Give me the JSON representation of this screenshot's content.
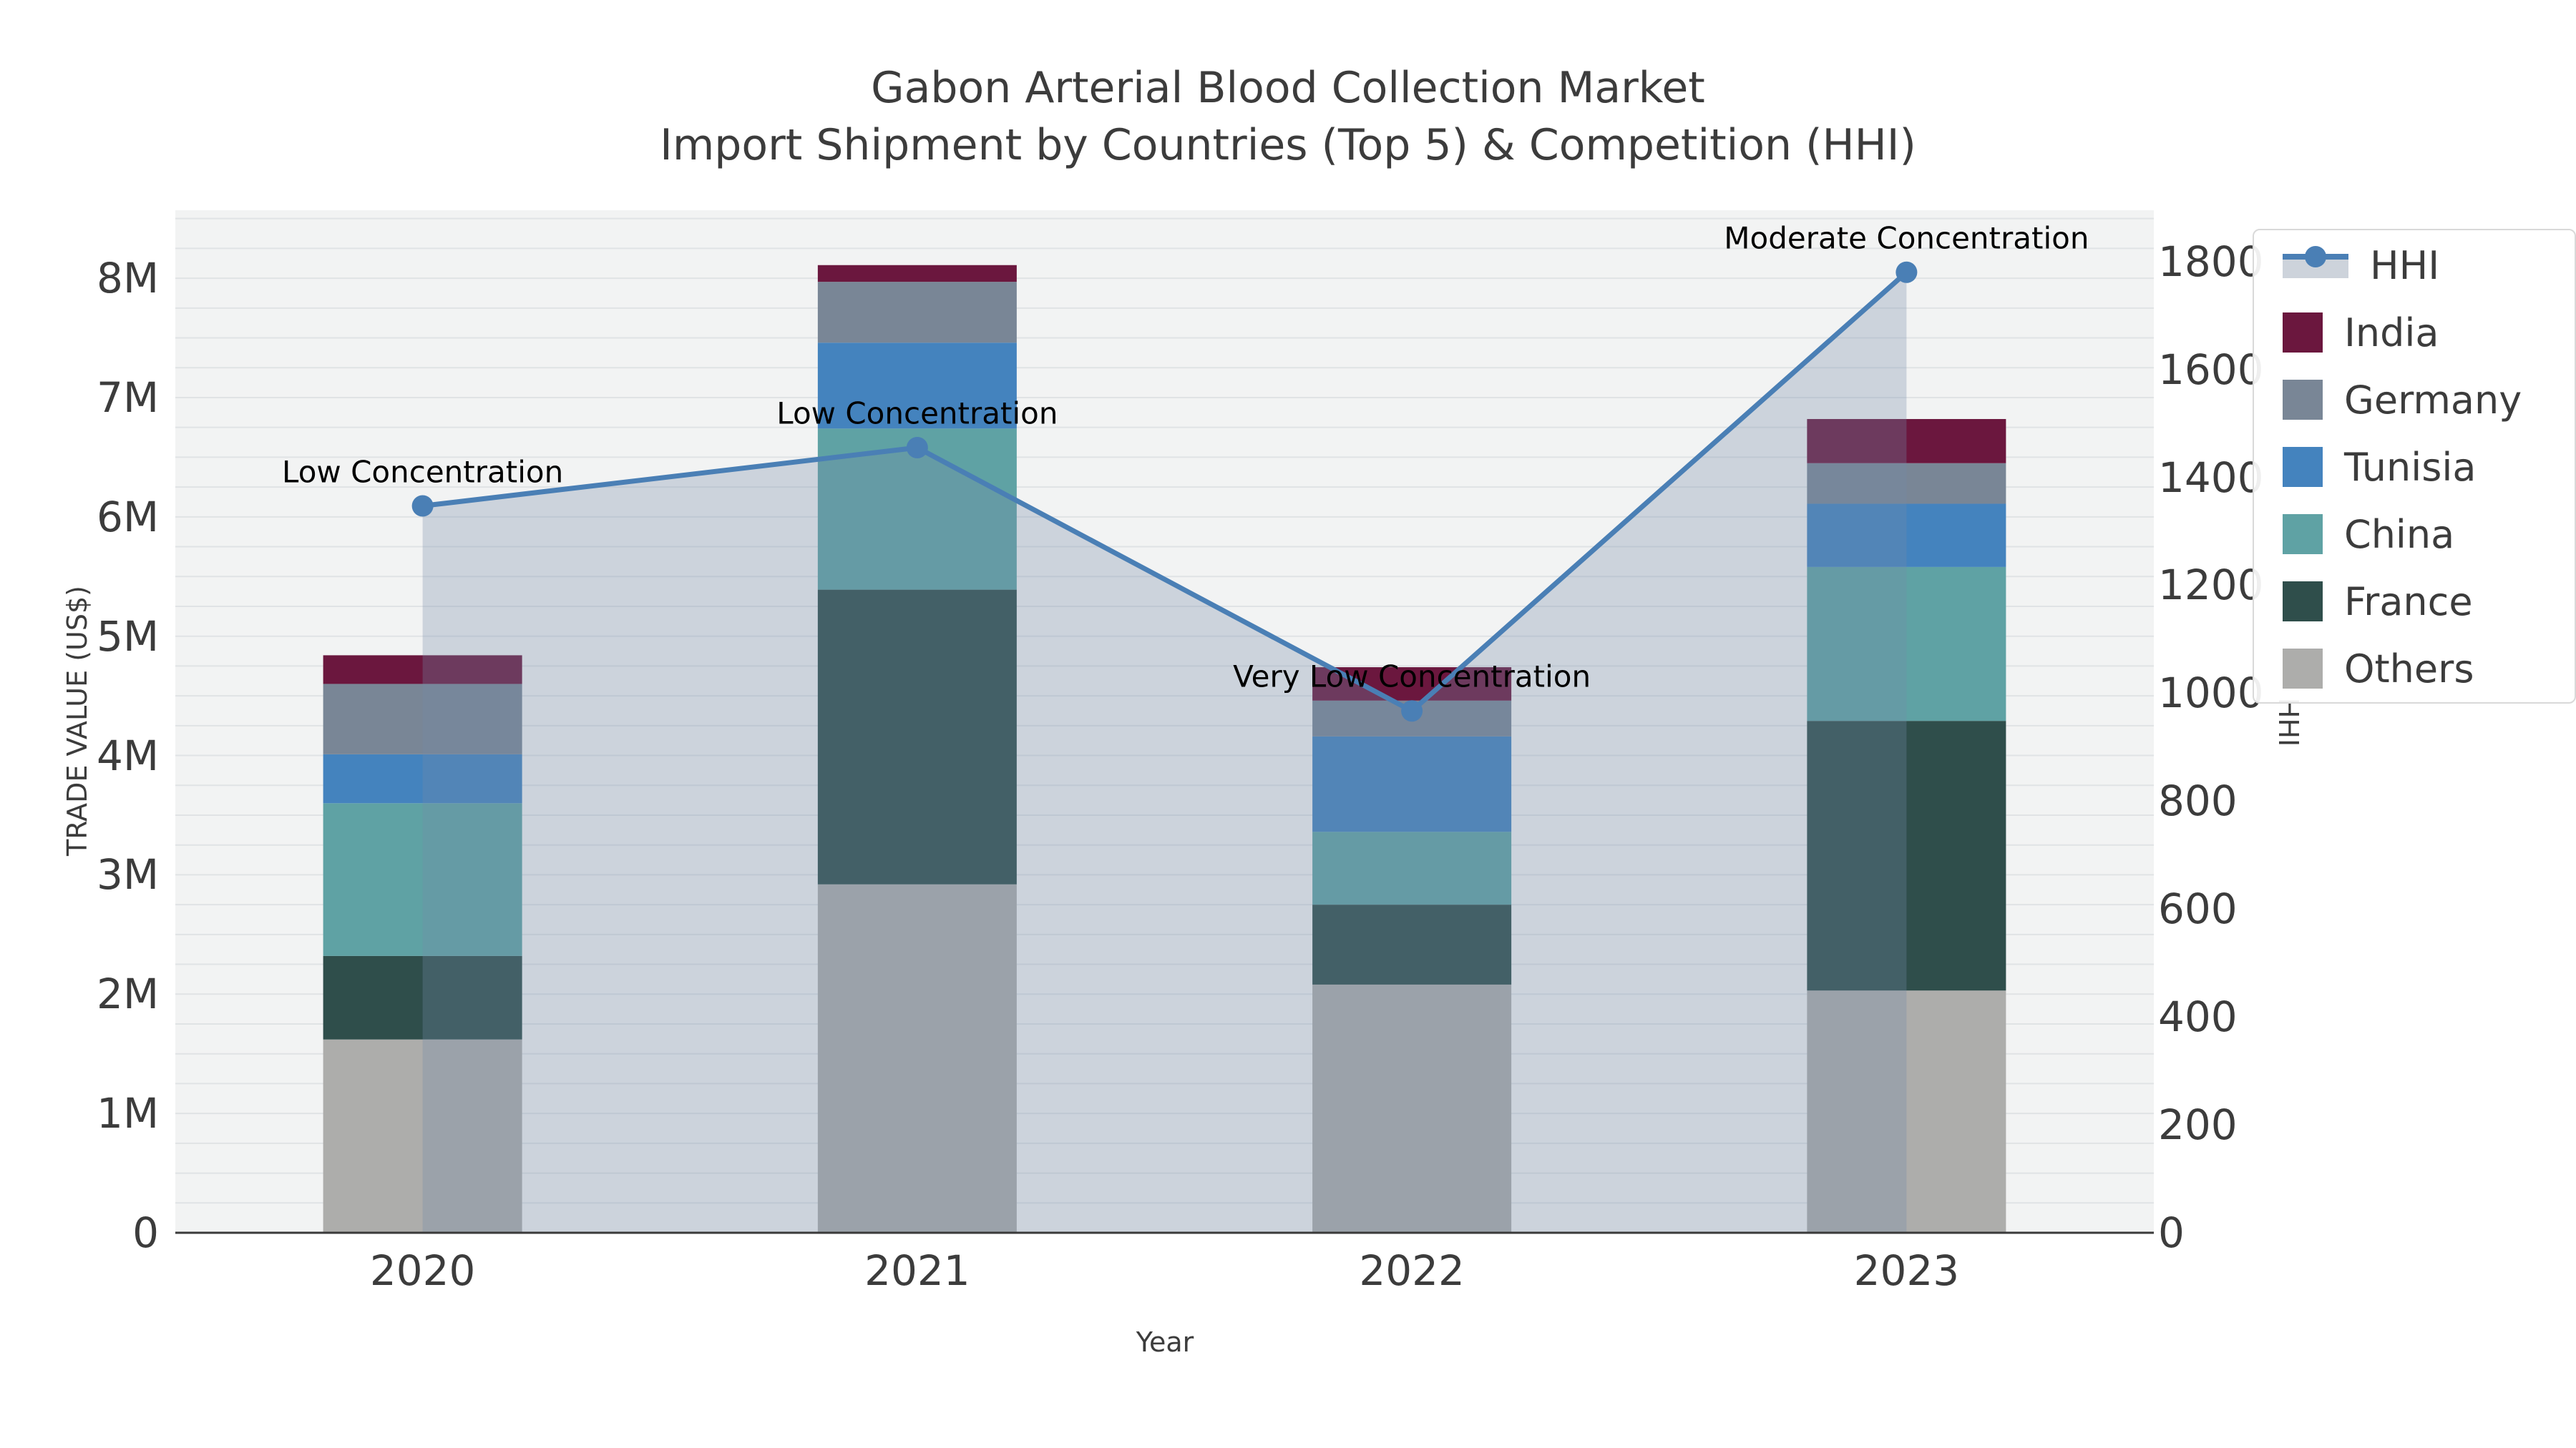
{
  "title": {
    "line1": "Gabon Arterial Blood Collection Market",
    "line2": "Import Shipment by Countries (Top 5) & Competition (HHI)"
  },
  "axes": {
    "left": {
      "title": "TRADE VALUE (US$)",
      "ticks": [
        "0",
        "1M",
        "2M",
        "3M",
        "4M",
        "5M",
        "6M",
        "7M",
        "8M"
      ]
    },
    "right": {
      "title": "HHI",
      "ticks": [
        "0",
        "200",
        "400",
        "600",
        "800",
        "1000",
        "1200",
        "1400",
        "1600",
        "1800"
      ]
    },
    "x": {
      "title": "Year",
      "ticks": [
        "2020",
        "2021",
        "2022",
        "2023"
      ]
    }
  },
  "legend": {
    "items": [
      {
        "label": "HHI",
        "type": "line-area",
        "color": "#4a7fb5"
      },
      {
        "label": "India",
        "type": "bar",
        "color": "#6b173e"
      },
      {
        "label": "Germany",
        "type": "bar",
        "color": "#798696"
      },
      {
        "label": "Tunisia",
        "type": "bar",
        "color": "#4483be"
      },
      {
        "label": "China",
        "type": "bar",
        "color": "#5fa2a4"
      },
      {
        "label": "France",
        "type": "bar",
        "color": "#2f4e4b"
      },
      {
        "label": "Others",
        "type": "bar",
        "color": "#adadab"
      }
    ]
  },
  "chart_data": {
    "type": "bar",
    "subtype": "stacked bars with overlaid line+area (dual axis)",
    "categories": [
      "2020",
      "2021",
      "2022",
      "2023"
    ],
    "series": [
      {
        "name": "India",
        "axis": "left",
        "color": "#6b173e",
        "values": [
          0.24,
          0.14,
          0.28,
          0.37
        ]
      },
      {
        "name": "Germany",
        "axis": "left",
        "color": "#798696",
        "values": [
          0.59,
          0.51,
          0.3,
          0.34
        ]
      },
      {
        "name": "Tunisia",
        "axis": "left",
        "color": "#4483be",
        "values": [
          0.41,
          0.72,
          0.8,
          0.53
        ]
      },
      {
        "name": "China",
        "axis": "left",
        "color": "#5fa2a4",
        "values": [
          1.28,
          1.35,
          0.61,
          1.29
        ]
      },
      {
        "name": "France",
        "axis": "left",
        "color": "#2f4e4b",
        "values": [
          0.7,
          2.47,
          0.67,
          2.26
        ]
      },
      {
        "name": "Others",
        "axis": "left",
        "color": "#adadab",
        "values": [
          1.62,
          2.92,
          2.08,
          2.03
        ]
      }
    ],
    "stack_totals_millions": [
      4.84,
      8.11,
      4.74,
      6.82
    ],
    "hhi_line": {
      "name": "HHI",
      "axis": "right",
      "color": "#4a7fb5",
      "area_fill": "rgba(115,140,170,0.30)",
      "values": [
        1347,
        1455,
        967,
        1780
      ]
    },
    "annotations": [
      {
        "category": "2020",
        "text": "Low Concentration"
      },
      {
        "category": "2021",
        "text": "Low Concentration"
      },
      {
        "category": "2022",
        "text": "Very Low Concentration"
      },
      {
        "category": "2023",
        "text": "Moderate Concentration"
      }
    ],
    "title": "Gabon Arterial Blood Collection Market — Import Shipment by Countries (Top 5) & Competition (HHI)",
    "xlabel": "Year",
    "ylabel_left": "TRADE VALUE (US$)",
    "ylabel_right": "HHI",
    "ylim_left_millions": [
      0,
      8.57
    ],
    "ylim_right": [
      0,
      1895
    ],
    "grid": true,
    "grid_step_millions": 0.25,
    "legend_position": "top-right",
    "colors": {
      "plot_background": "#f2f3f3",
      "gridline": "#e0e3e5",
      "axis_line": "#3a3a3a",
      "text": "#3c3c3c",
      "annotation_text": "#000000"
    }
  }
}
